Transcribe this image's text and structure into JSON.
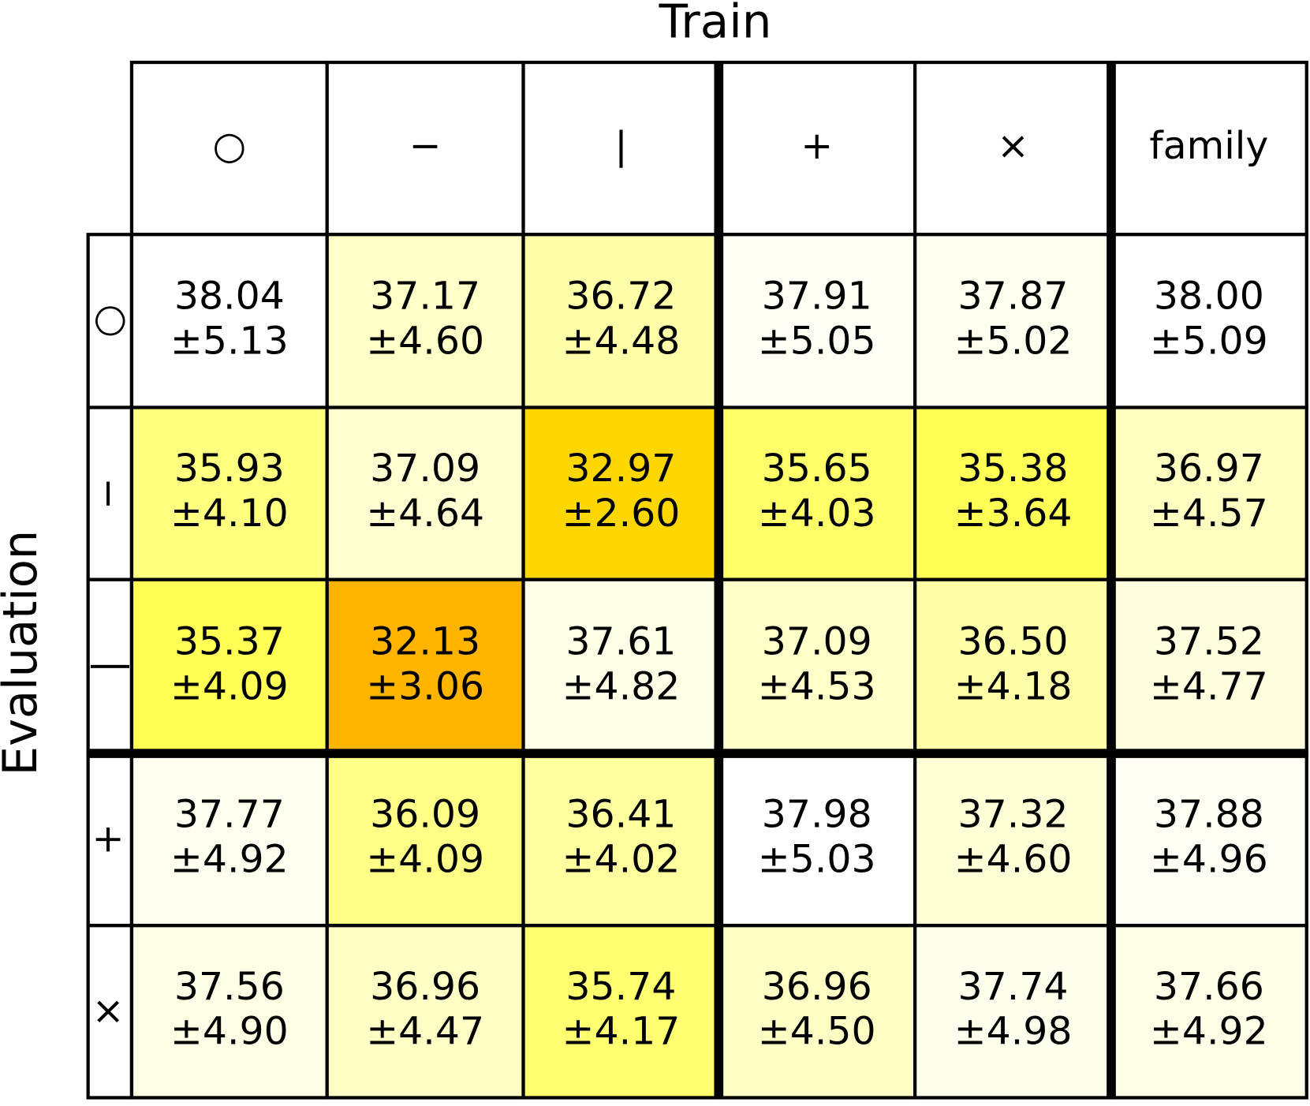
{
  "table": {
    "column_title": "Train",
    "row_title": "Evaluation",
    "columns": [
      "○",
      "−",
      "|",
      "+",
      "×",
      "family"
    ],
    "rows": [
      {
        "label": "○",
        "cells": [
          {
            "mean": "38.04",
            "std": "±5.13",
            "color": "#ffffff"
          },
          {
            "mean": "37.17",
            "std": "±4.60",
            "color": "#ffffc8"
          },
          {
            "mean": "36.72",
            "std": "±4.48",
            "color": "#ffffaa"
          },
          {
            "mean": "37.91",
            "std": "±5.05",
            "color": "#fffff5"
          },
          {
            "mean": "37.87",
            "std": "±5.02",
            "color": "#fffff0"
          },
          {
            "mean": "38.00",
            "std": "±5.09",
            "color": "#ffffff"
          }
        ]
      },
      {
        "label": "−",
        "cells": [
          {
            "mean": "35.93",
            "std": "±4.10",
            "color": "#ffff80"
          },
          {
            "mean": "37.09",
            "std": "±4.64",
            "color": "#ffffd2"
          },
          {
            "mean": "32.97",
            "std": "±2.60",
            "color": "#ffd700"
          },
          {
            "mean": "35.65",
            "std": "±4.03",
            "color": "#ffff6a"
          },
          {
            "mean": "35.38",
            "std": "±3.64",
            "color": "#ffff55"
          },
          {
            "mean": "36.97",
            "std": "±4.57",
            "color": "#ffffc2"
          }
        ]
      },
      {
        "label": "|",
        "cells": [
          {
            "mean": "35.37",
            "std": "±4.09",
            "color": "#ffff55"
          },
          {
            "mean": "32.13",
            "std": "±3.06",
            "color": "#ffb400"
          },
          {
            "mean": "37.61",
            "std": "±4.82",
            "color": "#ffffe8"
          },
          {
            "mean": "37.09",
            "std": "±4.53",
            "color": "#ffffca"
          },
          {
            "mean": "36.50",
            "std": "±4.18",
            "color": "#ffffa8"
          },
          {
            "mean": "37.52",
            "std": "±4.77",
            "color": "#ffffe0"
          }
        ]
      },
      {
        "label": "+",
        "cells": [
          {
            "mean": "37.77",
            "std": "±4.92",
            "color": "#fffff0"
          },
          {
            "mean": "36.09",
            "std": "±4.09",
            "color": "#ffff88"
          },
          {
            "mean": "36.41",
            "std": "±4.02",
            "color": "#ffffa0"
          },
          {
            "mean": "37.98",
            "std": "±5.03",
            "color": "#ffffff"
          },
          {
            "mean": "37.32",
            "std": "±4.60",
            "color": "#ffffd8"
          },
          {
            "mean": "37.88",
            "std": "±4.96",
            "color": "#fffff5"
          }
        ]
      },
      {
        "label": "×",
        "cells": [
          {
            "mean": "37.56",
            "std": "±4.90",
            "color": "#ffffe5"
          },
          {
            "mean": "36.96",
            "std": "±4.47",
            "color": "#ffffc5"
          },
          {
            "mean": "35.74",
            "std": "±4.17",
            "color": "#ffff70"
          },
          {
            "mean": "36.96",
            "std": "±4.50",
            "color": "#ffffc5"
          },
          {
            "mean": "37.74",
            "std": "±4.98",
            "color": "#ffffee"
          },
          {
            "mean": "37.66",
            "std": "±4.92",
            "color": "#ffffe8"
          }
        ]
      }
    ]
  }
}
